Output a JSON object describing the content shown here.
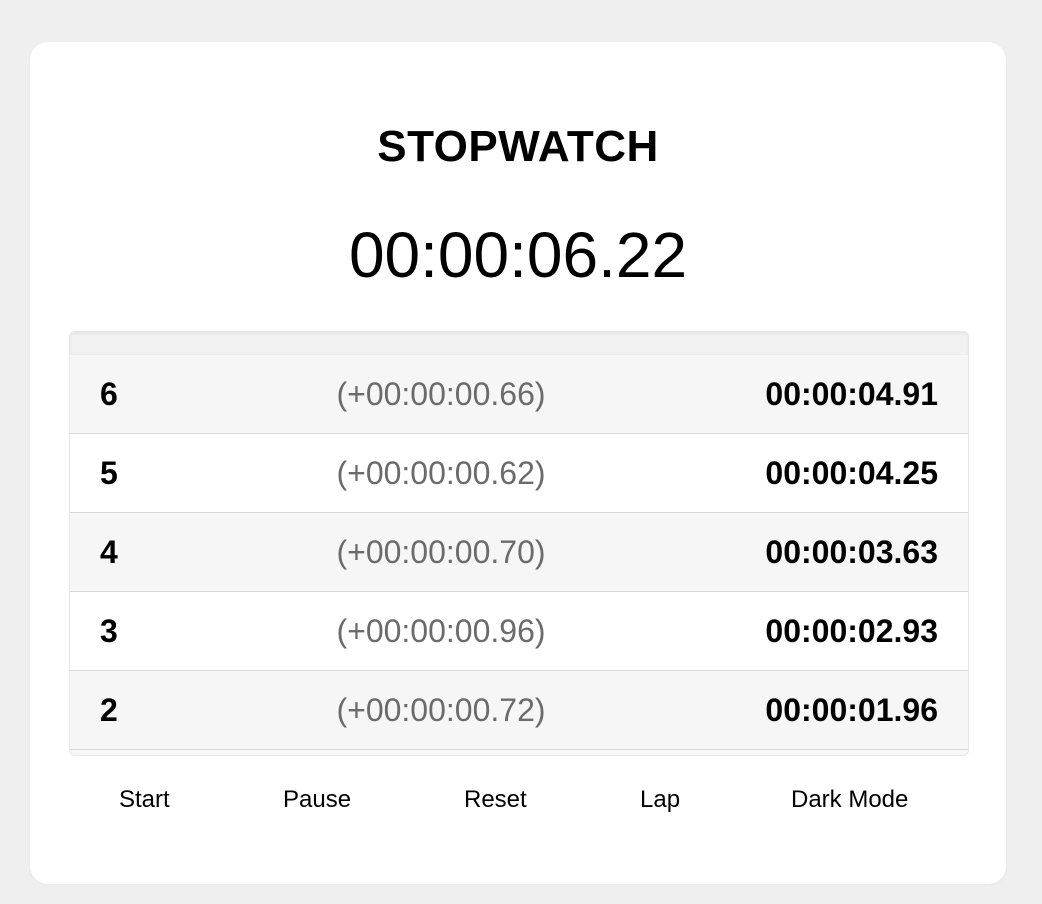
{
  "app": {
    "title": "STOPWATCH",
    "elapsed": "00:00:06.22"
  },
  "laps": [
    {
      "number": "6",
      "split": "(+00:00:00.66)",
      "total": "00:00:04.91"
    },
    {
      "number": "5",
      "split": "(+00:00:00.62)",
      "total": "00:00:04.25"
    },
    {
      "number": "4",
      "split": "(+00:00:00.70)",
      "total": "00:00:03.63"
    },
    {
      "number": "3",
      "split": "(+00:00:00.96)",
      "total": "00:00:02.93"
    },
    {
      "number": "2",
      "split": "(+00:00:00.72)",
      "total": "00:00:01.96"
    }
  ],
  "controls": {
    "start_label": "Start",
    "pause_label": "Pause",
    "reset_label": "Reset",
    "lap_label": "Lap",
    "dark_mode_label": "Dark Mode"
  },
  "colors": {
    "page_background": "#efefef",
    "card_background": "#ffffff",
    "split_text": "#6b6b6b",
    "row_alt": "#f6f6f6"
  }
}
